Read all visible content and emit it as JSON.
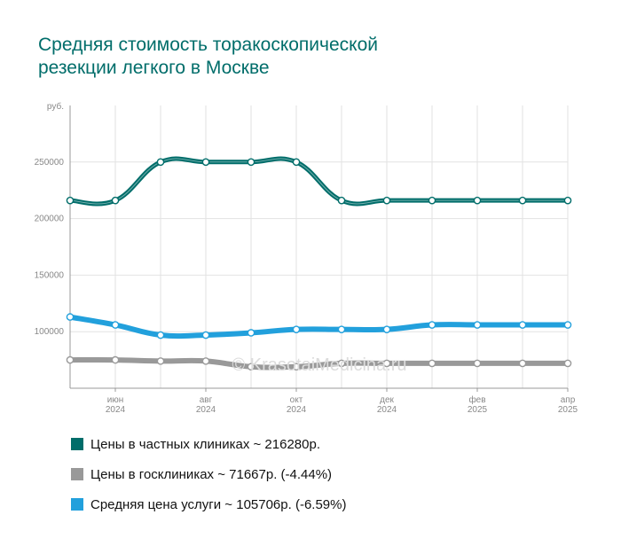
{
  "title_line1": "Средняя стоимость торакоскопической",
  "title_line2": "резекции легкого в Москве",
  "watermark": "© KrasotaiMedicina.ru",
  "chart_data": {
    "type": "line",
    "ylabel": "руб.",
    "ylim": [
      50000,
      300000
    ],
    "yticks": [
      100000,
      150000,
      200000,
      250000
    ],
    "x": [
      "2024-05",
      "2024-06",
      "2024-07",
      "2024-08",
      "2024-09",
      "2024-10",
      "2024-11",
      "2024-12",
      "2025-01",
      "2025-02",
      "2025-03",
      "2025-04"
    ],
    "xtick_labels": [
      {
        "index": 1,
        "month": "июн",
        "year": "2024"
      },
      {
        "index": 3,
        "month": "авг",
        "year": "2024"
      },
      {
        "index": 5,
        "month": "окт",
        "year": "2024"
      },
      {
        "index": 7,
        "month": "дек",
        "year": "2024"
      },
      {
        "index": 9,
        "month": "фев",
        "year": "2025"
      },
      {
        "index": 11,
        "month": "апр",
        "year": "2025"
      }
    ],
    "grid": true,
    "legend_position": "bottom",
    "series": [
      {
        "name": "Цены в частных клиниках ~ 216280р.",
        "color": "#006d6a",
        "values": [
          216000,
          216000,
          250000,
          250000,
          250000,
          250000,
          216000,
          216000,
          216000,
          216000,
          216000,
          216000
        ]
      },
      {
        "name": "Цены в госклиниках ~ 71667р. (-4.44%)",
        "color": "#999999",
        "values": [
          75000,
          75000,
          74000,
          74000,
          69000,
          69000,
          72000,
          72000,
          72000,
          72000,
          72000,
          72000
        ]
      },
      {
        "name": "Средняя цена услуги ~ 105706р. (-6.59%)",
        "color": "#22a0dc",
        "values": [
          113000,
          106000,
          97000,
          97000,
          99000,
          102000,
          102000,
          102000,
          106000,
          106000,
          106000,
          106000
        ]
      }
    ]
  }
}
